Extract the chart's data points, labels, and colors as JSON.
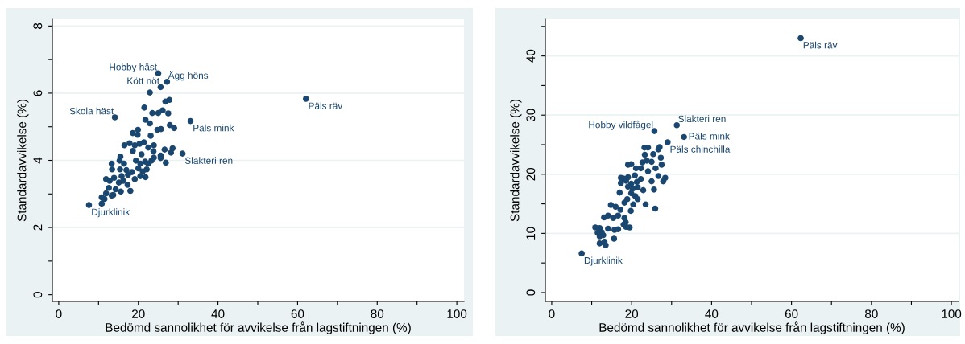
{
  "chart_data": [
    {
      "type": "scatter",
      "xlabel": "Bedömd sannolikhet för avvikelse från lagstiftningen (%)",
      "ylabel": "Standardavvikelse (%)",
      "marker": "circle",
      "grid": "y",
      "xlim": [
        -1.6,
        101.8
      ],
      "ylim": [
        -0.2,
        8.2
      ],
      "xticks": [
        0,
        {
          "value": 10,
          "label": null
        },
        20,
        {
          "value": 30,
          "label": null
        },
        40,
        {
          "value": 50,
          "label": null
        },
        60,
        {
          "value": 70,
          "label": null
        },
        80,
        {
          "value": 90,
          "label": null
        },
        100
      ],
      "yticks": [
        0,
        {
          "value": 1,
          "label": null
        },
        2,
        {
          "value": 3,
          "label": null
        },
        4,
        {
          "value": 5,
          "label": null
        },
        6,
        {
          "value": 7,
          "label": null
        },
        8
      ],
      "series": [
        {
          "color": "#1a476f",
          "x": [
            25.0,
            25.6,
            27.2,
            14.1,
            62.1,
            33.1,
            31.1,
            7.6,
            22.9,
            21.5,
            26.8,
            27.8,
            23.5,
            25.0,
            26.1,
            27.5,
            21.8,
            22.9,
            24.8,
            25.7,
            27.9,
            29.0,
            19.9,
            18.6,
            19.8,
            23.1,
            16.5,
            17.8,
            19.1,
            21.4,
            20.3,
            23.9,
            22.5,
            23.8,
            26.6,
            28.6,
            28.2,
            18.6,
            20.8,
            25.6,
            25.6,
            26.9,
            15.5,
            15.3,
            16.4,
            13.3,
            13.4,
            19.4,
            20.5,
            21.7,
            23.3,
            23.9,
            22.5,
            15.4,
            17.0,
            18.4,
            20.0,
            21.1,
            22.1,
            11.9,
            12.8,
            13.9,
            15.8,
            17.4,
            19.1,
            20.5,
            21.8,
            15.1,
            16.2,
            17.3,
            12.6,
            14.3,
            15.6,
            18.0,
            11.9,
            13.3,
            13.7,
            10.8,
            11.5,
            10.8
          ],
          "values": [
            6.59,
            6.18,
            6.34,
            5.28,
            5.83,
            5.17,
            4.2,
            2.67,
            6.02,
            5.57,
            5.75,
            5.8,
            5.41,
            5.41,
            5.49,
            5.4,
            5.21,
            5.1,
            4.91,
            4.93,
            5.05,
            4.96,
            4.91,
            4.81,
            4.76,
            4.73,
            4.45,
            4.51,
            4.45,
            4.54,
            4.49,
            4.45,
            4.38,
            4.27,
            4.32,
            4.36,
            4.23,
            4.28,
            4.18,
            4.14,
            4.07,
            3.93,
            4.11,
            3.99,
            3.9,
            3.9,
            3.73,
            3.99,
            3.9,
            3.96,
            3.99,
            4.08,
            3.9,
            3.73,
            3.71,
            3.65,
            3.76,
            3.67,
            3.73,
            3.44,
            3.39,
            3.48,
            3.53,
            3.57,
            3.44,
            3.53,
            3.5,
            3.34,
            3.39,
            3.27,
            3.18,
            3.14,
            3.07,
            3.09,
            3.02,
            2.95,
            2.97,
            2.9,
            2.85,
            2.71
          ]
        }
      ],
      "annotations": [
        {
          "text": "Hobby häst",
          "x": 25.0,
          "y": 6.59
        },
        {
          "text": "Kött nöt",
          "x": 25.6,
          "y": 6.18
        },
        {
          "text": "Ägg höns",
          "x": 27.2,
          "y": 6.34
        },
        {
          "text": "Skola häst",
          "x": 14.1,
          "y": 5.28
        },
        {
          "text": "Päls räv",
          "x": 62.1,
          "y": 5.83
        },
        {
          "text": "Päls mink",
          "x": 33.1,
          "y": 5.17
        },
        {
          "text": "Slakteri ren",
          "x": 31.1,
          "y": 4.2
        },
        {
          "text": "Djurklinik",
          "x": 7.6,
          "y": 2.67
        }
      ]
    },
    {
      "type": "scatter",
      "xlabel": "Bedömd sannolikhet för avvikelse från lagstiftningen (%)",
      "ylabel": "Standardavvikelse (%)",
      "marker": "circle",
      "grid": "y",
      "xlim": [
        -1.6,
        101.8
      ],
      "ylim": [
        -1.5,
        46.2
      ],
      "xticks": [
        0,
        {
          "value": 10,
          "label": null
        },
        20,
        {
          "value": 30,
          "label": null
        },
        40,
        {
          "value": 50,
          "label": null
        },
        60,
        {
          "value": 70,
          "label": null
        },
        80,
        {
          "value": 90,
          "label": null
        },
        100
      ],
      "yticks": [
        0,
        {
          "value": 5,
          "label": null
        },
        10,
        {
          "value": 15,
          "label": null
        },
        20,
        {
          "value": 25,
          "label": null
        },
        30,
        {
          "value": 35,
          "label": null
        },
        40,
        {
          "value": 45,
          "label": null
        }
      ],
      "series": [
        {
          "color": "#1a476f",
          "x": [
            62.3,
            31.3,
            25.7,
            33.1,
            29.0,
            7.5,
            27.0,
            26.7,
            23.2,
            24.1,
            23.3,
            25.4,
            27.3,
            22.7,
            23.8,
            25.0,
            27.5,
            19.1,
            19.9,
            21.1,
            22.3,
            24.1,
            26.0,
            17.3,
            17.9,
            19.1,
            20.8,
            22.3,
            26.7,
            28.4,
            17.3,
            18.6,
            19.9,
            21.3,
            25.0,
            27.9,
            19.1,
            20.3,
            21.5,
            22.9,
            25.6,
            17.0,
            19.9,
            20.9,
            18.9,
            21.5,
            18.2,
            20.4,
            23.5,
            14.8,
            16.0,
            17.2,
            19.8,
            25.9,
            13.1,
            14.1,
            15.4,
            16.6,
            18.2,
            18.5,
            18.0,
            19.5,
            18.6,
            10.9,
            12.0,
            14.1,
            15.7,
            16.6,
            11.5,
            12.5,
            12.0,
            12.9,
            15.6,
            12.0,
            13.5,
            13.2
          ],
          "values": [
            43.0,
            28.3,
            27.3,
            26.3,
            25.4,
            6.6,
            24.6,
            24.2,
            24.5,
            24.5,
            23.3,
            23.4,
            22.8,
            22.0,
            22.3,
            22.1,
            21.6,
            21.6,
            21.7,
            21.0,
            21.0,
            20.5,
            21.0,
            19.4,
            19.3,
            19.5,
            19.8,
            19.2,
            19.7,
            19.4,
            18.5,
            18.9,
            18.4,
            18.7,
            18.8,
            18.8,
            17.9,
            17.6,
            17.8,
            17.3,
            17.4,
            16.9,
            16.8,
            16.3,
            15.8,
            15.8,
            15.2,
            14.9,
            14.9,
            14.8,
            14.5,
            14.0,
            13.8,
            14.2,
            12.7,
            13.0,
            12.6,
            13.0,
            12.6,
            11.9,
            11.5,
            11.0,
            11.1,
            11.0,
            10.9,
            10.8,
            10.6,
            10.7,
            10.1,
            10.2,
            9.5,
            9.7,
            9.1,
            8.3,
            8.0,
            8.6
          ]
        }
      ],
      "annotations": [
        {
          "text": "Päls räv",
          "x": 62.3,
          "y": 43.0
        },
        {
          "text": "Slakteri ren",
          "x": 31.3,
          "y": 28.3
        },
        {
          "text": "Hobby vildfågel",
          "x": 25.7,
          "y": 27.3
        },
        {
          "text": "Päls mink",
          "x": 33.1,
          "y": 26.3
        },
        {
          "text": "Päls chinchilla",
          "x": 29.0,
          "y": 25.4
        },
        {
          "text": "Djurklinik",
          "x": 7.5,
          "y": 6.6
        }
      ]
    }
  ]
}
